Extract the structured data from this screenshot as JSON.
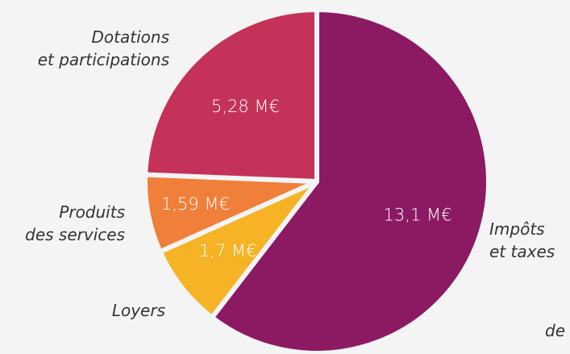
{
  "chart_data": {
    "type": "pie",
    "categories": [
      "Impôts\net taxes",
      "Loyers",
      "Produits\ndes services",
      "Dotations\net participations"
    ],
    "values": [
      13.1,
      1.7,
      1.59,
      5.28
    ],
    "value_labels": [
      "13,1 M€",
      "1,7 M€",
      "1,59 M€",
      "5,28 M€"
    ],
    "colors": [
      "#8b1a63",
      "#f5b325",
      "#f07f3a",
      "#c4325a"
    ],
    "annotations": [
      "de"
    ]
  }
}
